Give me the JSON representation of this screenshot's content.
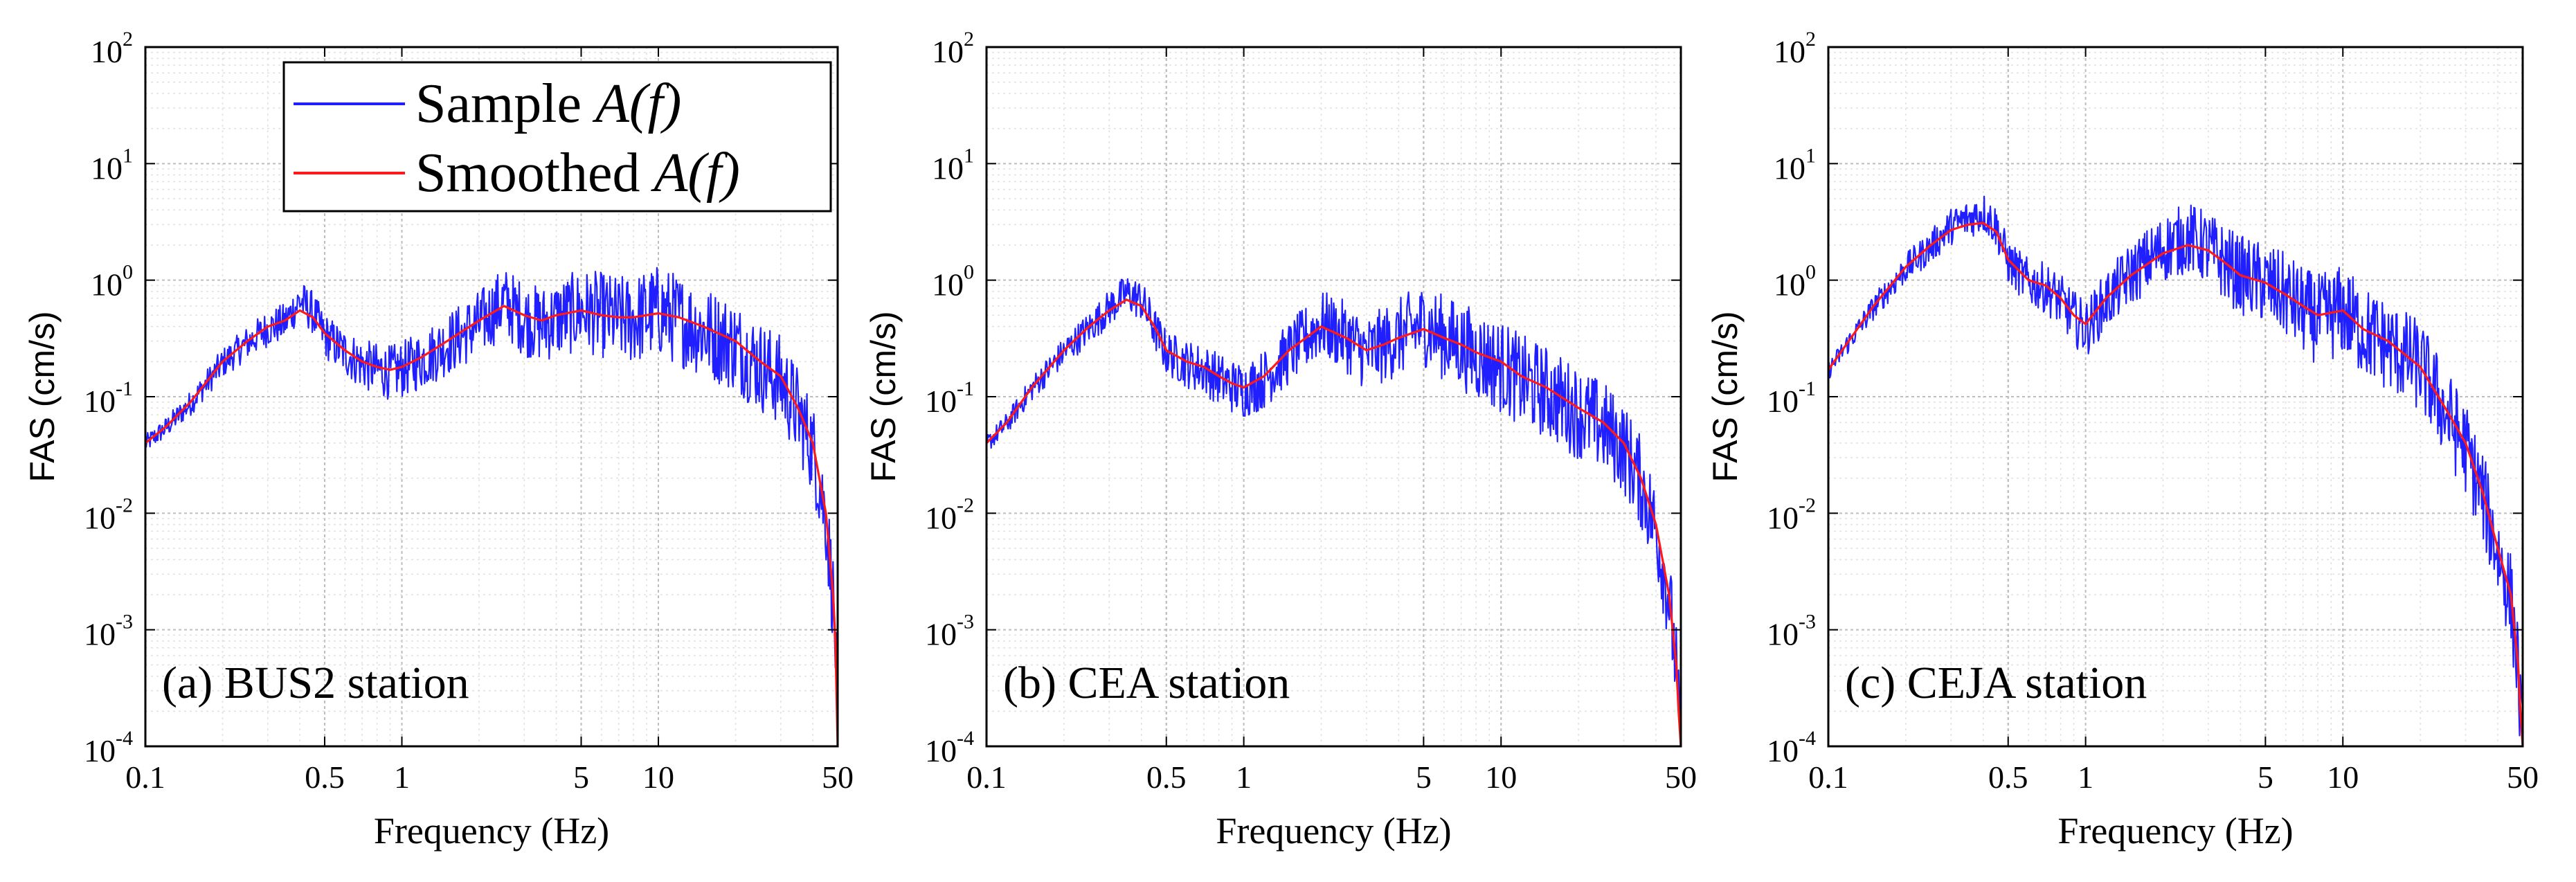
{
  "chart_data": [
    {
      "type": "line",
      "panel_label": "(a) BUS2 station",
      "xlabel": "Frequency (Hz)",
      "ylabel": "FAS (cm/s)",
      "xscale": "log",
      "yscale": "log",
      "xlim": [
        0.1,
        50
      ],
      "ylim": [
        0.0001,
        100
      ],
      "xticks": [
        0.1,
        0.5,
        1,
        5,
        10,
        50
      ],
      "xtick_labels": [
        "0.1",
        "0.5",
        "1",
        "5",
        "10",
        "50"
      ],
      "ytick_labels": [
        {
          "base": "10",
          "exp": "2"
        },
        {
          "base": "10",
          "exp": "1"
        },
        {
          "base": "10",
          "exp": "0"
        },
        {
          "base": "10",
          "exp": "-1"
        },
        {
          "base": "10",
          "exp": "-2"
        },
        {
          "base": "10",
          "exp": "-3"
        },
        {
          "base": "10",
          "exp": "-4"
        }
      ],
      "grid": true,
      "legend": {
        "position": "top-left",
        "entries": [
          {
            "text": "Sample ",
            "math": "A(f)",
            "color": "#1f1fff"
          },
          {
            "text": "Smoothed ",
            "math": "A(f)",
            "color": "#ff1a1a"
          }
        ]
      },
      "series": [
        {
          "name": "Sample A(f)",
          "color": "#1f1fff",
          "noise": 0.5,
          "x": [
            0.1,
            0.12,
            0.15,
            0.2,
            0.25,
            0.3,
            0.35,
            0.4,
            0.45,
            0.5,
            0.6,
            0.7,
            0.8,
            0.9,
            1.0,
            1.2,
            1.5,
            2.0,
            2.5,
            3.0,
            3.5,
            4.0,
            5.0,
            6.0,
            7.0,
            8.0,
            10.0,
            12.0,
            15.0,
            20.0,
            25.0,
            30.0,
            35.0,
            40.0,
            45.0,
            48.0,
            49.0,
            50.0
          ],
          "y": [
            0.04,
            0.055,
            0.09,
            0.2,
            0.3,
            0.4,
            0.45,
            0.7,
            0.55,
            0.35,
            0.25,
            0.2,
            0.18,
            0.17,
            0.18,
            0.22,
            0.3,
            0.45,
            0.7,
            0.5,
            0.45,
            0.5,
            0.6,
            0.55,
            0.5,
            0.5,
            0.6,
            0.5,
            0.4,
            0.3,
            0.2,
            0.15,
            0.08,
            0.04,
            0.01,
            0.002,
            0.0008,
            0.0001
          ]
        },
        {
          "name": "Smoothed A(f)",
          "color": "#ff1a1a",
          "noise": 0,
          "x": [
            0.1,
            0.12,
            0.15,
            0.2,
            0.25,
            0.3,
            0.35,
            0.4,
            0.45,
            0.5,
            0.6,
            0.7,
            0.8,
            0.9,
            1.0,
            1.2,
            1.5,
            2.0,
            2.5,
            3.0,
            3.5,
            4.0,
            5.0,
            6.0,
            7.0,
            8.0,
            10.0,
            12.0,
            15.0,
            20.0,
            25.0,
            30.0,
            35.0,
            40.0,
            45.0,
            48.0,
            49.0,
            50.0
          ],
          "y": [
            0.04,
            0.055,
            0.09,
            0.2,
            0.3,
            0.4,
            0.45,
            0.55,
            0.48,
            0.35,
            0.25,
            0.2,
            0.18,
            0.17,
            0.18,
            0.22,
            0.3,
            0.45,
            0.6,
            0.5,
            0.45,
            0.5,
            0.55,
            0.5,
            0.48,
            0.48,
            0.52,
            0.48,
            0.4,
            0.3,
            0.2,
            0.15,
            0.08,
            0.04,
            0.01,
            0.002,
            0.0008,
            0.0001
          ]
        }
      ]
    },
    {
      "type": "line",
      "panel_label": "(b) CEA station",
      "xlabel": "Frequency (Hz)",
      "ylabel": "FAS (cm/s)",
      "xscale": "log",
      "yscale": "log",
      "xlim": [
        0.1,
        50
      ],
      "ylim": [
        0.0001,
        100
      ],
      "xticks": [
        0.1,
        0.5,
        1,
        5,
        10,
        50
      ],
      "xtick_labels": [
        "0.1",
        "0.5",
        "1",
        "5",
        "10",
        "50"
      ],
      "ytick_labels": [
        {
          "base": "10",
          "exp": "2"
        },
        {
          "base": "10",
          "exp": "1"
        },
        {
          "base": "10",
          "exp": "0"
        },
        {
          "base": "10",
          "exp": "-1"
        },
        {
          "base": "10",
          "exp": "-2"
        },
        {
          "base": "10",
          "exp": "-3"
        },
        {
          "base": "10",
          "exp": "-4"
        }
      ],
      "grid": true,
      "series": [
        {
          "name": "Sample A(f)",
          "color": "#1f1fff",
          "noise": 0.5,
          "x": [
            0.1,
            0.12,
            0.15,
            0.2,
            0.25,
            0.3,
            0.35,
            0.4,
            0.45,
            0.5,
            0.6,
            0.7,
            0.8,
            0.9,
            1.0,
            1.2,
            1.5,
            2.0,
            2.5,
            3.0,
            3.5,
            4.0,
            5.0,
            6.0,
            7.0,
            8.0,
            10.0,
            12.0,
            15.0,
            20.0,
            25.0,
            30.0,
            35.0,
            40.0,
            45.0,
            48.0,
            49.0,
            50.0
          ],
          "y": [
            0.04,
            0.06,
            0.12,
            0.25,
            0.4,
            0.6,
            0.8,
            0.7,
            0.4,
            0.25,
            0.2,
            0.18,
            0.15,
            0.13,
            0.12,
            0.15,
            0.25,
            0.45,
            0.35,
            0.25,
            0.3,
            0.35,
            0.45,
            0.35,
            0.3,
            0.25,
            0.2,
            0.15,
            0.12,
            0.08,
            0.06,
            0.04,
            0.02,
            0.008,
            0.002,
            0.0005,
            0.0002,
            0.0001
          ]
        },
        {
          "name": "Smoothed A(f)",
          "color": "#ff1a1a",
          "noise": 0,
          "x": [
            0.1,
            0.12,
            0.15,
            0.2,
            0.25,
            0.3,
            0.35,
            0.4,
            0.45,
            0.5,
            0.6,
            0.7,
            0.8,
            0.9,
            1.0,
            1.2,
            1.5,
            2.0,
            2.5,
            3.0,
            3.5,
            4.0,
            5.0,
            6.0,
            7.0,
            8.0,
            10.0,
            12.0,
            15.0,
            20.0,
            25.0,
            30.0,
            35.0,
            40.0,
            45.0,
            48.0,
            49.0,
            50.0
          ],
          "y": [
            0.04,
            0.06,
            0.12,
            0.25,
            0.4,
            0.55,
            0.68,
            0.6,
            0.4,
            0.25,
            0.2,
            0.18,
            0.15,
            0.13,
            0.12,
            0.15,
            0.25,
            0.4,
            0.32,
            0.25,
            0.28,
            0.32,
            0.38,
            0.32,
            0.28,
            0.24,
            0.2,
            0.15,
            0.12,
            0.08,
            0.06,
            0.04,
            0.02,
            0.008,
            0.002,
            0.0005,
            0.0002,
            0.0001
          ]
        }
      ]
    },
    {
      "type": "line",
      "panel_label": "(c) CEJA station",
      "xlabel": "Frequency (Hz)",
      "ylabel": "FAS (cm/s)",
      "xscale": "log",
      "yscale": "log",
      "xlim": [
        0.1,
        50
      ],
      "ylim": [
        0.0001,
        100
      ],
      "xticks": [
        0.1,
        0.5,
        1,
        5,
        10,
        50
      ],
      "xtick_labels": [
        "0.1",
        "0.5",
        "1",
        "5",
        "10",
        "50"
      ],
      "ytick_labels": [
        {
          "base": "10",
          "exp": "2"
        },
        {
          "base": "10",
          "exp": "1"
        },
        {
          "base": "10",
          "exp": "0"
        },
        {
          "base": "10",
          "exp": "-1"
        },
        {
          "base": "10",
          "exp": "-2"
        },
        {
          "base": "10",
          "exp": "-3"
        },
        {
          "base": "10",
          "exp": "-4"
        }
      ],
      "grid": true,
      "series": [
        {
          "name": "Sample A(f)",
          "color": "#1f1fff",
          "noise": 0.5,
          "x": [
            0.1,
            0.12,
            0.15,
            0.2,
            0.25,
            0.3,
            0.35,
            0.4,
            0.45,
            0.5,
            0.6,
            0.7,
            0.8,
            0.9,
            1.0,
            1.2,
            1.5,
            2.0,
            2.5,
            3.0,
            3.5,
            4.0,
            5.0,
            6.0,
            7.0,
            8.0,
            10.0,
            12.0,
            15.0,
            20.0,
            25.0,
            30.0,
            35.0,
            40.0,
            45.0,
            48.0,
            49.0,
            50.0
          ],
          "y": [
            0.17,
            0.3,
            0.6,
            1.3,
            2.0,
            3.0,
            3.5,
            4.0,
            3.0,
            1.5,
            1.0,
            0.9,
            0.7,
            0.5,
            0.4,
            0.7,
            1.2,
            2.0,
            2.5,
            2.0,
            1.5,
            1.2,
            1.0,
            0.8,
            0.6,
            0.5,
            0.6,
            0.4,
            0.3,
            0.2,
            0.08,
            0.04,
            0.015,
            0.005,
            0.002,
            0.0005,
            0.0002,
            0.0001
          ]
        },
        {
          "name": "Smoothed A(f)",
          "color": "#ff1a1a",
          "noise": 0,
          "x": [
            0.1,
            0.12,
            0.15,
            0.2,
            0.25,
            0.3,
            0.35,
            0.4,
            0.45,
            0.5,
            0.6,
            0.7,
            0.8,
            0.9,
            1.0,
            1.2,
            1.5,
            2.0,
            2.5,
            3.0,
            3.5,
            4.0,
            5.0,
            6.0,
            7.0,
            8.0,
            10.0,
            12.0,
            15.0,
            20.0,
            25.0,
            30.0,
            35.0,
            40.0,
            45.0,
            48.0,
            49.0,
            50.0
          ],
          "y": [
            0.17,
            0.3,
            0.6,
            1.3,
            2.0,
            2.7,
            3.0,
            3.1,
            2.6,
            1.5,
            1.0,
            0.9,
            0.7,
            0.5,
            0.42,
            0.7,
            1.1,
            1.7,
            2.0,
            1.8,
            1.4,
            1.1,
            0.95,
            0.75,
            0.6,
            0.5,
            0.55,
            0.38,
            0.3,
            0.18,
            0.08,
            0.04,
            0.015,
            0.005,
            0.002,
            0.0005,
            0.0002,
            0.0001
          ]
        }
      ]
    }
  ]
}
